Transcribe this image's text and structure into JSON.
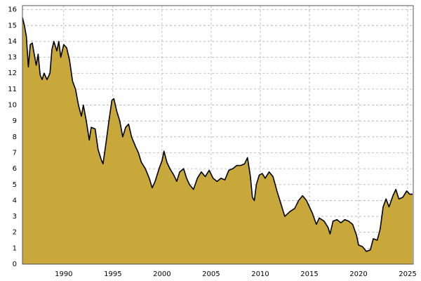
{
  "chart_data": {
    "type": "area",
    "x": [
      1985.8,
      1986.0,
      1986.2,
      1986.4,
      1986.6,
      1986.8,
      1987.0,
      1987.2,
      1987.4,
      1987.6,
      1987.8,
      1988.0,
      1988.3,
      1988.6,
      1988.8,
      1989.0,
      1989.3,
      1989.5,
      1989.7,
      1990.0,
      1990.3,
      1990.6,
      1990.9,
      1991.2,
      1991.5,
      1991.8,
      1992.0,
      1992.3,
      1992.6,
      1992.8,
      1993.2,
      1993.5,
      1993.8,
      1994.0,
      1994.3,
      1994.6,
      1994.9,
      1995.1,
      1995.4,
      1995.7,
      1996.0,
      1996.3,
      1996.6,
      1996.9,
      1997.3,
      1997.6,
      1997.9,
      1998.3,
      1998.7,
      1999.0,
      1999.3,
      1999.7,
      2000.0,
      2000.2,
      2000.5,
      2000.8,
      2001.2,
      2001.5,
      2001.8,
      2002.2,
      2002.5,
      2002.8,
      2003.2,
      2003.6,
      2004.0,
      2004.4,
      2004.8,
      2005.2,
      2005.6,
      2006.0,
      2006.4,
      2006.8,
      2007.2,
      2007.6,
      2008.0,
      2008.4,
      2008.7,
      2009.0,
      2009.2,
      2009.4,
      2009.6,
      2009.9,
      2010.2,
      2010.5,
      2010.9,
      2011.3,
      2011.7,
      2012.0,
      2012.5,
      2013.0,
      2013.5,
      2013.9,
      2014.3,
      2014.7,
      2015.0,
      2015.3,
      2015.7,
      2016.0,
      2016.5,
      2016.9,
      2017.1,
      2017.4,
      2017.8,
      2018.2,
      2018.6,
      2019.0,
      2019.4,
      2019.8,
      2020.0,
      2020.4,
      2020.8,
      2021.2,
      2021.5,
      2021.9,
      2022.2,
      2022.5,
      2022.8,
      2023.1,
      2023.5,
      2023.8,
      2024.1,
      2024.5,
      2024.9,
      2025.2,
      2025.5
    ],
    "series": [
      {
        "color": "#c8a83a",
        "line_color": "#000000",
        "values": [
          15.5,
          15.0,
          14.3,
          12.4,
          13.8,
          13.9,
          13.2,
          12.5,
          13.2,
          11.9,
          11.6,
          12.0,
          11.6,
          12.0,
          13.5,
          14.0,
          13.4,
          14.0,
          13.0,
          13.8,
          13.6,
          12.8,
          11.5,
          11.0,
          10.0,
          9.3,
          10.0,
          9.0,
          7.8,
          8.6,
          8.5,
          7.2,
          6.6,
          6.3,
          7.6,
          9.0,
          10.3,
          10.4,
          9.6,
          9.0,
          8.0,
          8.6,
          8.8,
          8.0,
          7.4,
          7.0,
          6.4,
          6.0,
          5.4,
          4.8,
          5.2,
          6.0,
          6.5,
          7.1,
          6.4,
          6.0,
          5.6,
          5.2,
          5.8,
          6.0,
          5.4,
          5.0,
          4.7,
          5.4,
          5.8,
          5.5,
          5.9,
          5.4,
          5.2,
          5.4,
          5.3,
          5.9,
          6.0,
          6.2,
          6.2,
          6.3,
          6.7,
          5.5,
          4.2,
          4.0,
          5.0,
          5.6,
          5.7,
          5.4,
          5.8,
          5.5,
          4.6,
          4.0,
          3.0,
          3.3,
          3.5,
          4.0,
          4.3,
          4.0,
          3.6,
          3.2,
          2.5,
          2.9,
          2.7,
          2.3,
          1.9,
          2.7,
          2.8,
          2.6,
          2.8,
          2.7,
          2.5,
          1.8,
          1.2,
          1.1,
          0.8,
          0.9,
          1.6,
          1.5,
          2.2,
          3.6,
          4.1,
          3.6,
          4.3,
          4.7,
          4.1,
          4.2,
          4.6,
          4.4,
          4.4
        ]
      }
    ],
    "xlim": [
      1985.8,
      2025.57
    ],
    "ylim": [
      0,
      16.25
    ],
    "xticks": [
      1990,
      1995,
      2000,
      2005,
      2010,
      2015,
      2020,
      2025
    ],
    "yticks": [
      0,
      1,
      2,
      3,
      4,
      5,
      6,
      7,
      8,
      9,
      10,
      11,
      12,
      13,
      14,
      15,
      16
    ],
    "grid": true
  }
}
